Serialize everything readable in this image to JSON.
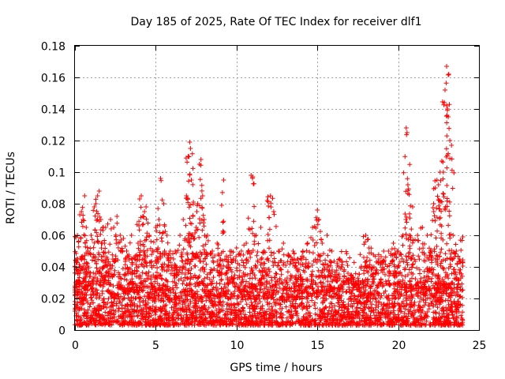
{
  "chart_data": {
    "type": "scatter",
    "title": "Day 185 of 2025, Rate Of TEC Index for receiver dlf1",
    "xlabel": "GPS time / hours",
    "ylabel": "ROTI / TECUs",
    "xlim": [
      0,
      25
    ],
    "ylim": [
      0,
      0.18
    ],
    "x_ticks": [
      0,
      5,
      10,
      15,
      20,
      25
    ],
    "x_tick_labels": [
      "0",
      "5",
      "10",
      "15",
      "20",
      "25"
    ],
    "y_ticks": [
      0,
      0.02,
      0.04,
      0.06,
      0.08,
      0.1,
      0.12,
      0.14,
      0.16,
      0.18
    ],
    "y_tick_labels": [
      "0",
      "0.02",
      "0.04",
      "0.06",
      "0.08",
      "0.1",
      "0.12",
      "0.14",
      "0.16",
      "0.18"
    ],
    "grid": true,
    "marker": "+",
    "marker_color": "#ff0000",
    "series": [
      {
        "points": [
          [
            0.0,
            0.012
          ],
          [
            0.1,
            0.045
          ],
          [
            0.15,
            0.06
          ],
          [
            0.2,
            0.03
          ],
          [
            0.3,
            0.073
          ],
          [
            0.4,
            0.075
          ],
          [
            0.5,
            0.07
          ],
          [
            0.6,
            0.085
          ],
          [
            0.7,
            0.065
          ],
          [
            0.8,
            0.05
          ],
          [
            1.0,
            0.06
          ],
          [
            1.2,
            0.078
          ],
          [
            1.3,
            0.08
          ],
          [
            1.4,
            0.085
          ],
          [
            1.5,
            0.088
          ],
          [
            1.6,
            0.07
          ],
          [
            1.7,
            0.055
          ],
          [
            1.9,
            0.065
          ],
          [
            2.0,
            0.045
          ],
          [
            2.2,
            0.07
          ],
          [
            2.4,
            0.065
          ],
          [
            2.6,
            0.072
          ],
          [
            2.8,
            0.06
          ],
          [
            3.0,
            0.058
          ],
          [
            3.2,
            0.05
          ],
          [
            3.5,
            0.06
          ],
          [
            3.7,
            0.045
          ],
          [
            3.9,
            0.055
          ],
          [
            4.0,
            0.083
          ],
          [
            4.1,
            0.085
          ],
          [
            4.2,
            0.072
          ],
          [
            4.3,
            0.075
          ],
          [
            4.4,
            0.078
          ],
          [
            4.6,
            0.06
          ],
          [
            4.8,
            0.05
          ],
          [
            5.0,
            0.065
          ],
          [
            5.2,
            0.07
          ],
          [
            5.3,
            0.096
          ],
          [
            5.5,
            0.08
          ],
          [
            5.7,
            0.06
          ],
          [
            5.9,
            0.05
          ],
          [
            6.1,
            0.045
          ],
          [
            6.3,
            0.04
          ],
          [
            6.5,
            0.06
          ],
          [
            6.7,
            0.07
          ],
          [
            6.9,
            0.085
          ],
          [
            7.0,
            0.11
          ],
          [
            7.1,
            0.119
          ],
          [
            7.15,
            0.115
          ],
          [
            7.2,
            0.095
          ],
          [
            7.3,
            0.072
          ],
          [
            7.5,
            0.065
          ],
          [
            7.6,
            0.08
          ],
          [
            7.7,
            0.105
          ],
          [
            7.8,
            0.108
          ],
          [
            7.9,
            0.085
          ],
          [
            8.0,
            0.07
          ],
          [
            8.2,
            0.06
          ],
          [
            8.5,
            0.05
          ],
          [
            8.8,
            0.055
          ],
          [
            9.0,
            0.045
          ],
          [
            9.2,
            0.095
          ],
          [
            9.4,
            0.04
          ],
          [
            9.6,
            0.05
          ],
          [
            9.8,
            0.045
          ],
          [
            10.0,
            0.052
          ],
          [
            10.3,
            0.05
          ],
          [
            10.6,
            0.055
          ],
          [
            10.9,
            0.098
          ],
          [
            11.0,
            0.097
          ],
          [
            11.2,
            0.06
          ],
          [
            11.5,
            0.065
          ],
          [
            11.7,
            0.05
          ],
          [
            11.9,
            0.082
          ],
          [
            12.1,
            0.085
          ],
          [
            12.3,
            0.075
          ],
          [
            12.6,
            0.05
          ],
          [
            12.9,
            0.055
          ],
          [
            13.2,
            0.048
          ],
          [
            13.5,
            0.05
          ],
          [
            13.8,
            0.045
          ],
          [
            14.1,
            0.05
          ],
          [
            14.4,
            0.055
          ],
          [
            14.7,
            0.065
          ],
          [
            15.0,
            0.076
          ],
          [
            15.1,
            0.07
          ],
          [
            15.3,
            0.055
          ],
          [
            15.6,
            0.06
          ],
          [
            15.9,
            0.05
          ],
          [
            16.2,
            0.035
          ],
          [
            16.5,
            0.04
          ],
          [
            16.8,
            0.03
          ],
          [
            17.1,
            0.035
          ],
          [
            17.4,
            0.028
          ],
          [
            17.7,
            0.03
          ],
          [
            18.0,
            0.06
          ],
          [
            18.2,
            0.052
          ],
          [
            18.5,
            0.04
          ],
          [
            18.8,
            0.045
          ],
          [
            19.1,
            0.05
          ],
          [
            19.4,
            0.05
          ],
          [
            19.7,
            0.055
          ],
          [
            20.0,
            0.05
          ],
          [
            20.3,
            0.06
          ],
          [
            20.5,
            0.128
          ],
          [
            20.55,
            0.125
          ],
          [
            20.6,
            0.092
          ],
          [
            20.7,
            0.06
          ],
          [
            20.9,
            0.078
          ],
          [
            21.2,
            0.06
          ],
          [
            21.5,
            0.065
          ],
          [
            21.8,
            0.06
          ],
          [
            22.0,
            0.05
          ],
          [
            22.2,
            0.075
          ],
          [
            22.3,
            0.09
          ],
          [
            22.4,
            0.095
          ],
          [
            22.5,
            0.092
          ],
          [
            22.6,
            0.1
          ],
          [
            22.7,
            0.107
          ],
          [
            22.8,
            0.1
          ],
          [
            22.9,
            0.152
          ],
          [
            23.0,
            0.167
          ],
          [
            23.05,
            0.14
          ],
          [
            23.1,
            0.135
          ],
          [
            23.2,
            0.12
          ],
          [
            23.3,
            0.117
          ],
          [
            23.4,
            0.06
          ],
          [
            23.6,
            0.05
          ],
          [
            23.8,
            0.045
          ],
          [
            24.0,
            0.059
          ]
        ],
        "baseline_band": {
          "x_range": [
            0,
            24
          ],
          "y_low": 0.003,
          "y_high": 0.03,
          "density": "dense"
        },
        "mid_band": {
          "x_range": [
            0,
            24
          ],
          "y_low": 0.02,
          "y_high": 0.05,
          "density": "moderate"
        }
      }
    ]
  }
}
